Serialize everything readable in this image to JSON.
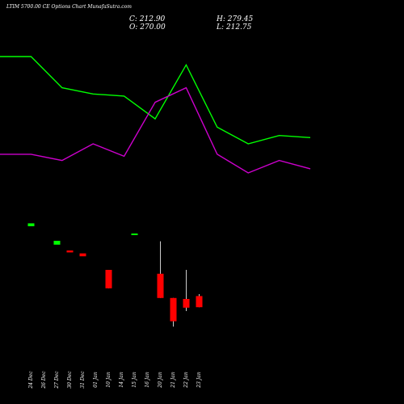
{
  "header": {
    "title": "LTIM 5700.00  CE Options  Chart MunafaSutra.com",
    "close": "C: 212.90",
    "open": "O: 270.00",
    "high": "H: 279.45",
    "low": "L: 212.75"
  },
  "colors": {
    "background": "#000000",
    "upper_line": "#00ff00",
    "lower_line": "#cc00cc",
    "candle_down": "#ff0000",
    "candle_up": "#00ff00",
    "doji": "#ffffff",
    "wick": "#ffffff",
    "text": "#ffffff"
  },
  "chart_data": [
    {
      "type": "line",
      "series": [
        {
          "values": [
            100,
            100,
            85,
            82,
            81,
            70,
            96,
            66,
            58,
            62,
            61
          ]
        },
        {
          "values": [
            53,
            53,
            50,
            58,
            52,
            78,
            85,
            53,
            44,
            50,
            46
          ]
        }
      ],
      "x_count": 11
    },
    {
      "type": "candlestick",
      "categories": [
        "24 Dec",
        "26 Dec",
        "27 Dec",
        "30 Dec",
        "31 Dec",
        "01 Jan",
        "10 Jan",
        "14 Jan",
        "15 Jan",
        "16 Jan",
        "20 Jan",
        "21 Jan",
        "22 Jan",
        "23 Jan"
      ],
      "candles": [
        {
          "open": 270,
          "high": 270.6,
          "low": 270,
          "close": 270.6
        },
        null,
        {
          "open": 266.2,
          "high": 267,
          "low": 266.2,
          "close": 267
        },
        {
          "open": 265,
          "high": 265,
          "low": 264.6,
          "close": 264.6
        },
        {
          "open": 264.4,
          "high": 264.4,
          "low": 263.8,
          "close": 263.8
        },
        null,
        {
          "open": 261,
          "high": 261,
          "low": 257.2,
          "close": 257.2
        },
        null,
        {
          "open": 268.2,
          "high": 268.5,
          "low": 268.2,
          "close": 268.5
        },
        null,
        {
          "open": 260.2,
          "high": 266.9,
          "low": 255.2,
          "close": 255.2
        },
        {
          "open": 255.2,
          "high": 255.2,
          "low": 249.3,
          "close": 250.4
        },
        {
          "open": 255,
          "high": 261,
          "low": 252.5,
          "close": 253.2
        },
        {
          "open": 255.6,
          "high": 256,
          "low": 253.3,
          "close": 253.3
        }
      ]
    }
  ]
}
